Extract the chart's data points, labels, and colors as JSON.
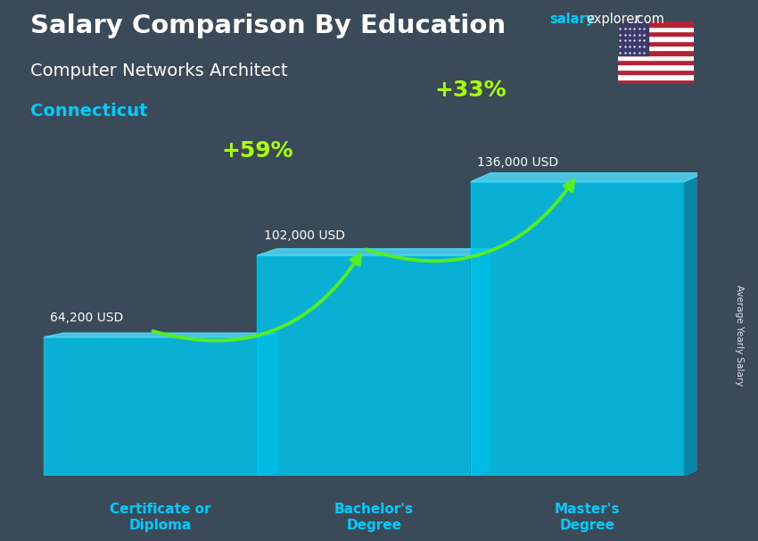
{
  "title": "Salary Comparison By Education",
  "subtitle": "Computer Networks Architect",
  "location": "Connecticut",
  "ylabel": "Average Yearly Salary",
  "categories": [
    "Certificate or\nDiploma",
    "Bachelor's\nDegree",
    "Master's\nDegree"
  ],
  "values": [
    64200,
    102000,
    136000
  ],
  "value_labels": [
    "64,200 USD",
    "102,000 USD",
    "136,000 USD"
  ],
  "pct_labels": [
    "+59%",
    "+33%"
  ],
  "bar_color_front": "#00C8F0",
  "bar_color_side": "#0090B8",
  "bar_color_top": "#50DEFF",
  "bar_alpha": 0.82,
  "title_color": "#FFFFFF",
  "subtitle_color": "#FFFFFF",
  "location_color": "#00CCFF",
  "watermark_color_salary": "#00CCFF",
  "watermark_color_rest": "#FFFFFF",
  "label_color": "#FFFFFF",
  "pct_color": "#AAFF00",
  "arrow_color": "#55EE22",
  "xtick_color": "#00CCFF",
  "bg_top": "#3a4a58",
  "bg_bottom": "#2a3540",
  "figsize": [
    8.5,
    6.06
  ],
  "dpi": 100
}
